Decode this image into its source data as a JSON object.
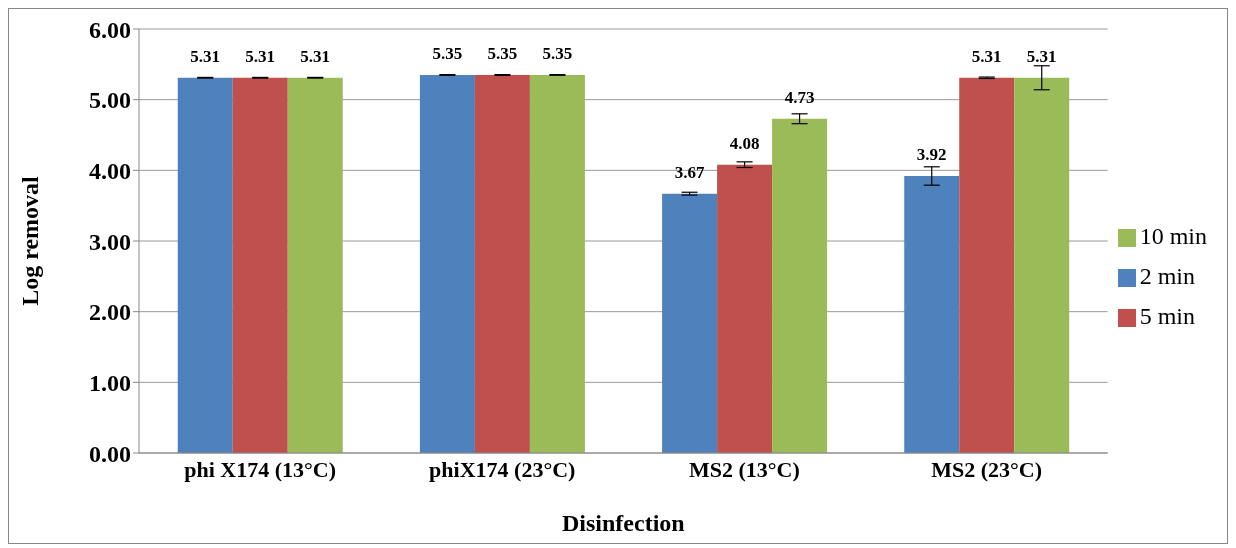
{
  "chart_data": {
    "type": "bar",
    "xlabel": "Disinfection",
    "ylabel": "Log removal",
    "categories": [
      "phi X174 (13°C)",
      "phiX174 (23°C)",
      "MS2 (13°C)",
      "MS2 (23°C)"
    ],
    "series": [
      {
        "name": "2 min",
        "color": "#4f81bd",
        "values": [
          5.31,
          5.35,
          3.67,
          3.92
        ],
        "errors": [
          0.005,
          0.005,
          0.02,
          0.13
        ]
      },
      {
        "name": "5 min",
        "color": "#c0504d",
        "values": [
          5.31,
          5.35,
          4.08,
          5.31
        ],
        "errors": [
          0.005,
          0.005,
          0.04,
          0.01
        ]
      },
      {
        "name": "10 min",
        "color": "#9bbb59",
        "values": [
          5.31,
          5.35,
          4.73,
          5.31
        ],
        "errors": [
          0.005,
          0.005,
          0.07,
          0.17
        ]
      }
    ],
    "ylim": [
      0,
      6
    ],
    "yticks": [
      {
        "value": 0,
        "label": "0.00"
      },
      {
        "value": 1,
        "label": "1.00"
      },
      {
        "value": 2,
        "label": "2.00"
      },
      {
        "value": 3,
        "label": "3.00"
      },
      {
        "value": 4,
        "label": "4.00"
      },
      {
        "value": 5,
        "label": "5.00"
      },
      {
        "value": 6,
        "label": "6.00"
      }
    ],
    "grid": "y",
    "legend": "right",
    "data_labels": true
  }
}
